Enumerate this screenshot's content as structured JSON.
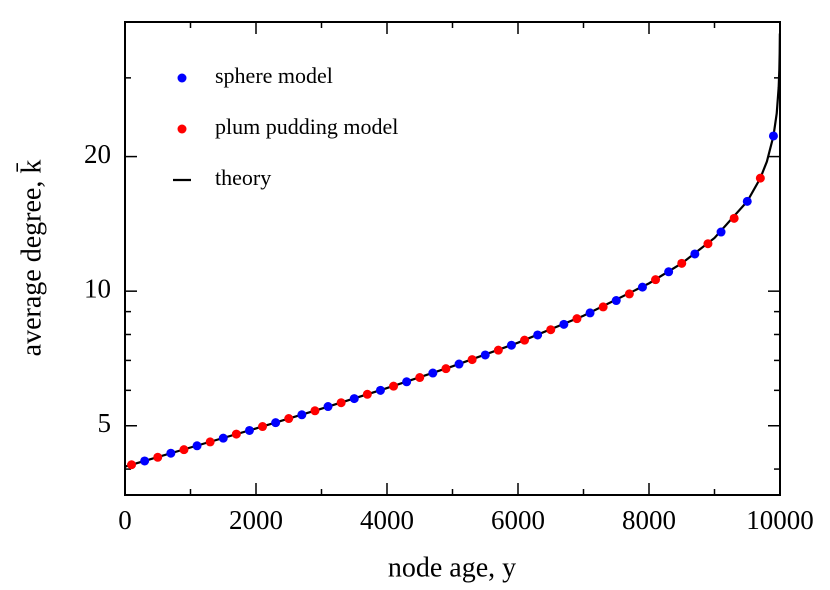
{
  "chart_data": {
    "type": "scatter",
    "x_label": "node age, y",
    "y_label": "average degree, k̄",
    "xlim": [
      0,
      10000
    ],
    "ylim": [
      3.5,
      40
    ],
    "ylog": true,
    "xticks": [
      0,
      2000,
      4000,
      6000,
      8000,
      10000
    ],
    "xminor_ticks": [
      1000,
      3000,
      5000,
      7000,
      9000
    ],
    "yticks": [
      5,
      10,
      20
    ],
    "yminor_ticks": [
      4,
      6,
      7,
      8,
      9,
      30
    ],
    "legend": "upper left",
    "series": [
      {
        "name": "sphere model",
        "color": "#0000ff",
        "type": "scatter",
        "x": [
          300,
          700,
          1100,
          1500,
          1900,
          2300,
          2700,
          3100,
          3500,
          3900,
          4300,
          4700,
          5100,
          5500,
          5900,
          6300,
          6700,
          7100,
          7500,
          7900,
          8300,
          8700,
          9100,
          9500,
          9900
        ],
        "values": [
          4.17,
          4.34,
          4.51,
          4.69,
          4.88,
          5.08,
          5.29,
          5.52,
          5.75,
          6.0,
          6.27,
          6.56,
          6.87,
          7.2,
          7.57,
          7.98,
          8.43,
          8.94,
          9.53,
          10.21,
          11.05,
          12.11,
          13.56,
          15.88,
          22.24
        ]
      },
      {
        "name": "plum pudding model",
        "color": "#ff0000",
        "type": "scatter",
        "x": [
          100,
          500,
          900,
          1300,
          1700,
          2100,
          2500,
          2900,
          3300,
          3700,
          4100,
          4500,
          4900,
          5300,
          5700,
          6100,
          6500,
          6900,
          7300,
          7700,
          8100,
          8500,
          8900,
          9300,
          9700
        ],
        "values": [
          4.09,
          4.25,
          4.42,
          4.6,
          4.79,
          4.98,
          5.19,
          5.4,
          5.63,
          5.88,
          6.13,
          6.41,
          6.71,
          7.03,
          7.38,
          7.77,
          8.2,
          8.68,
          9.22,
          9.86,
          10.61,
          11.54,
          12.77,
          14.55,
          17.9
        ]
      },
      {
        "name": "theory",
        "color": "#000000",
        "type": "line",
        "x": [
          0,
          1000,
          2000,
          3000,
          4000,
          5000,
          6000,
          7000,
          8000,
          8500,
          9000,
          9500,
          9700,
          9800,
          9900,
          9950,
          9980,
          9990,
          9995,
          9998
        ],
        "values": [
          4.05,
          4.47,
          4.93,
          5.46,
          6.07,
          6.79,
          7.67,
          8.81,
          10.41,
          11.54,
          13.15,
          15.88,
          17.9,
          19.5,
          22.24,
          24.98,
          28.6,
          31.34,
          34.07,
          37.69
        ]
      }
    ]
  }
}
